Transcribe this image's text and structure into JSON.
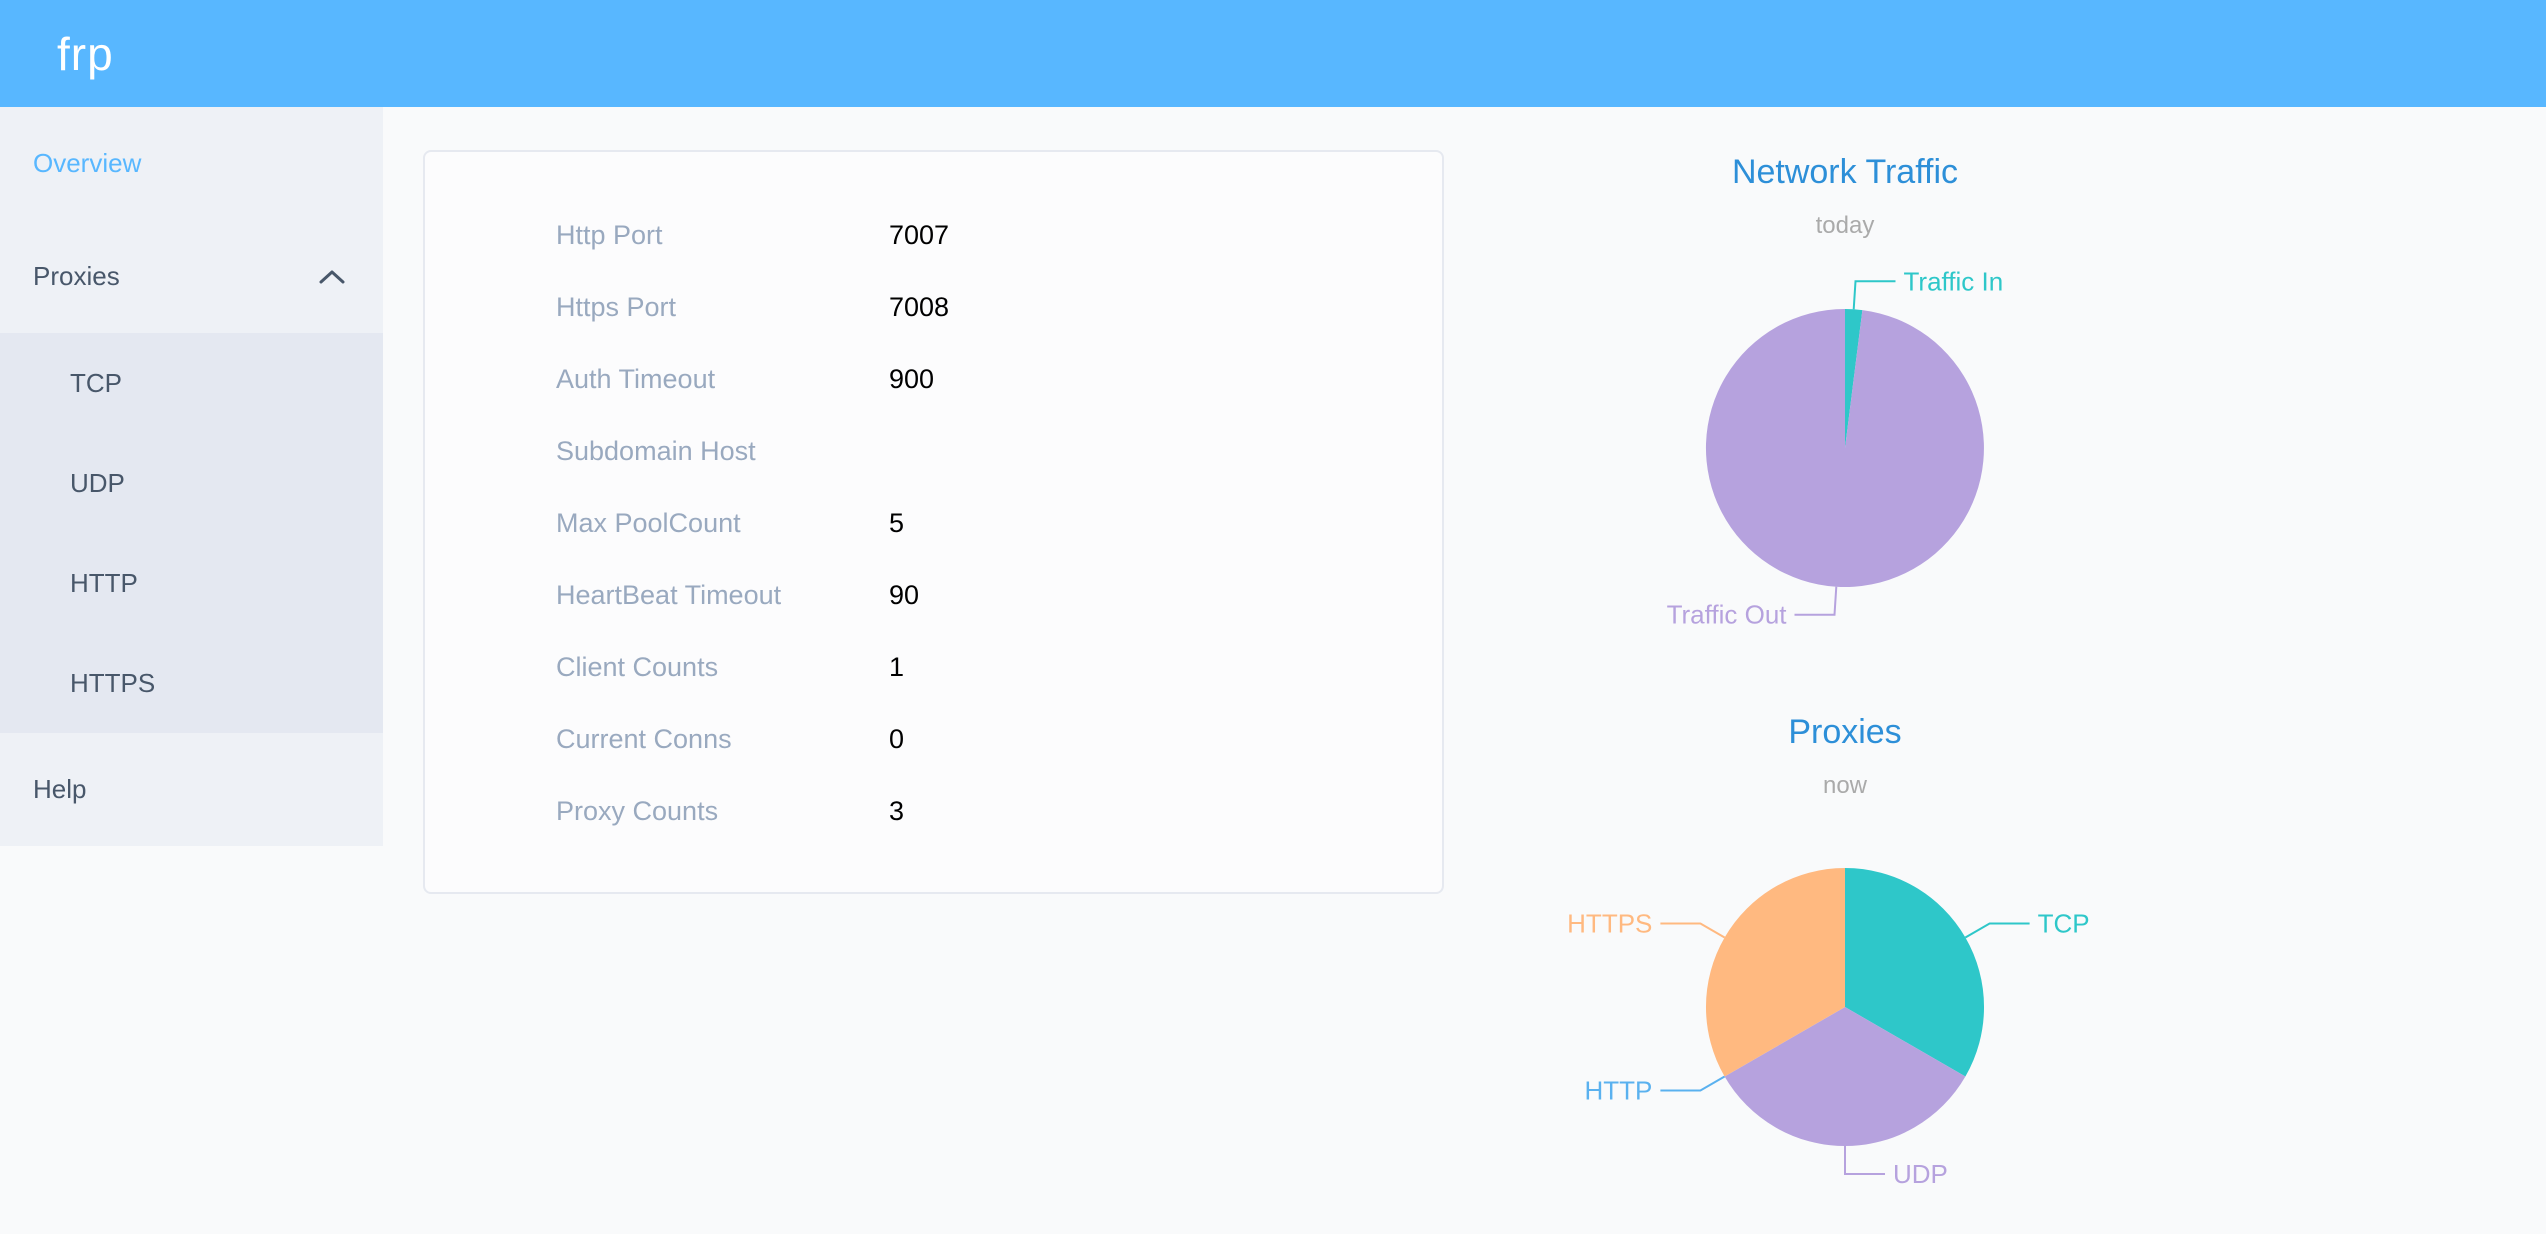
{
  "header": {
    "logo": "frp"
  },
  "sidebar": {
    "items": [
      {
        "label": "Overview",
        "active": true
      },
      {
        "label": "Proxies",
        "expanded": true,
        "children": [
          {
            "label": "TCP"
          },
          {
            "label": "UDP"
          },
          {
            "label": "HTTP"
          },
          {
            "label": "HTTPS"
          }
        ]
      },
      {
        "label": "Help"
      }
    ]
  },
  "overview_card": {
    "rows": [
      {
        "label": "Http Port",
        "value": "7007"
      },
      {
        "label": "Https Port",
        "value": "7008"
      },
      {
        "label": "Auth Timeout",
        "value": "900"
      },
      {
        "label": "Subdomain Host",
        "value": ""
      },
      {
        "label": "Max PoolCount",
        "value": "5"
      },
      {
        "label": "HeartBeat Timeout",
        "value": "90"
      },
      {
        "label": "Client Counts",
        "value": "1"
      },
      {
        "label": "Current Conns",
        "value": "0"
      },
      {
        "label": "Proxy Counts",
        "value": "3"
      }
    ]
  },
  "chart_data": [
    {
      "type": "pie",
      "title": "Network Traffic",
      "subtitle": "today",
      "legend_position": "outside-labels",
      "series": [
        {
          "name": "Traffic In",
          "value": 2,
          "color": "#2ec7c9"
        },
        {
          "name": "Traffic Out",
          "value": 98,
          "color": "#b6a2de"
        }
      ]
    },
    {
      "type": "pie",
      "title": "Proxies",
      "subtitle": "now",
      "legend_position": "outside-labels",
      "series": [
        {
          "name": "TCP",
          "value": 1,
          "color": "#2ec7c9"
        },
        {
          "name": "UDP",
          "value": 1,
          "color": "#b6a2de"
        },
        {
          "name": "HTTP",
          "value": 0,
          "color": "#5ab1ef"
        },
        {
          "name": "HTTPS",
          "value": 1,
          "color": "#ffb980"
        }
      ]
    }
  ],
  "colors": {
    "header_bg": "#58b7ff",
    "active_menu": "#58b7ff",
    "chart_title": "#2d8fd8",
    "menu_text": "#48576a",
    "label_gray": "#99a9bf"
  }
}
